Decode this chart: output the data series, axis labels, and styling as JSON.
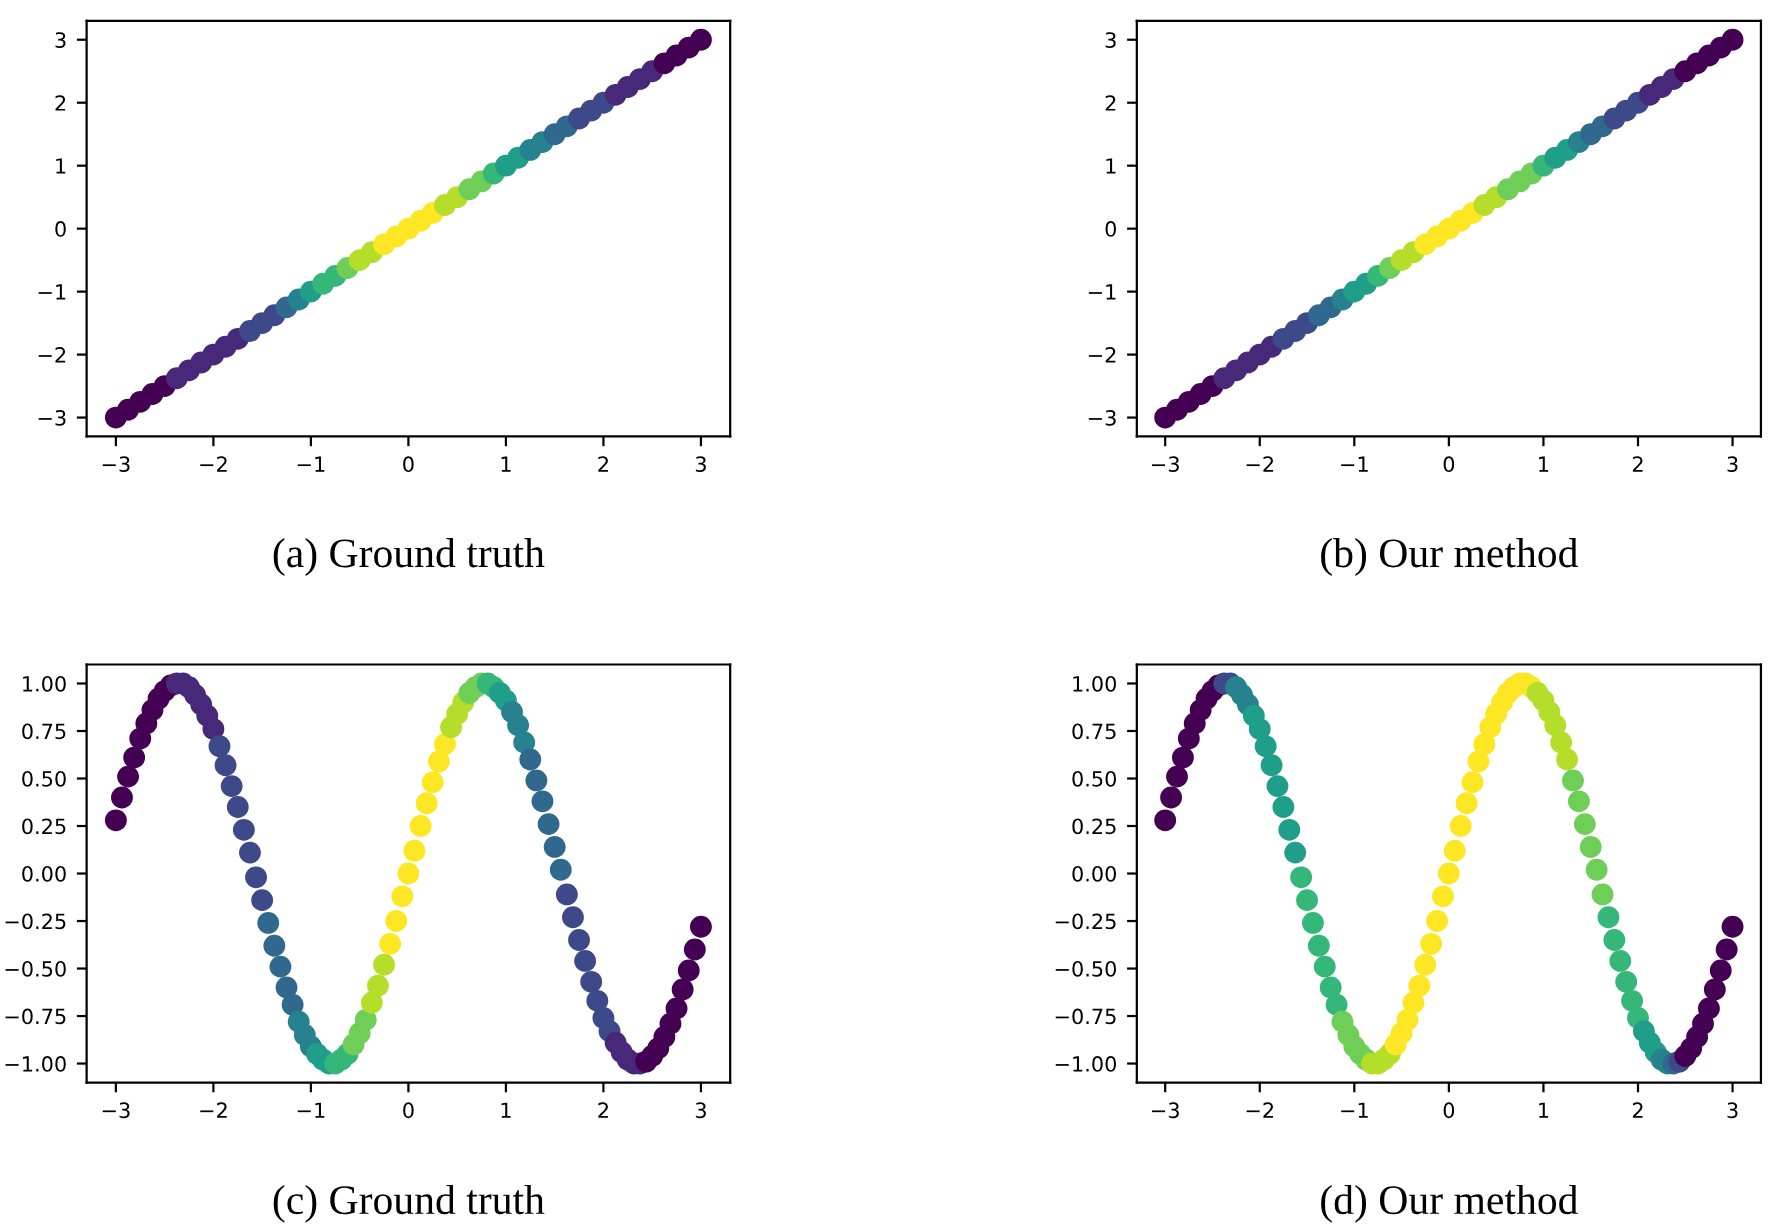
{
  "chart_data": [
    {
      "type": "scatter",
      "title": "(a) Ground truth",
      "grid": false,
      "marker": "circle",
      "xlim": [
        -3.3,
        3.3
      ],
      "ylim": [
        -3.3,
        3.3
      ],
      "xticks": [
        -3,
        -2,
        -1,
        0,
        1,
        2,
        3
      ],
      "yticks": [
        -3,
        -2,
        -1,
        0,
        1,
        2,
        3
      ],
      "x": [
        -3,
        -2.875,
        -2.75,
        -2.625,
        -2.5,
        -2.375,
        -2.25,
        -2.125,
        -2,
        -1.875,
        -1.75,
        -1.625,
        -1.5,
        -1.375,
        -1.25,
        -1.125,
        -1,
        -0.875,
        -0.75,
        -0.625,
        -0.5,
        -0.375,
        -0.25,
        -0.125,
        0,
        0.125,
        0.25,
        0.375,
        0.5,
        0.625,
        0.75,
        0.875,
        1,
        1.125,
        1.25,
        1.375,
        1.5,
        1.625,
        1.75,
        1.875,
        2,
        2.125,
        2.25,
        2.375,
        2.5,
        2.625,
        2.75,
        2.875,
        3
      ],
      "values": [
        -3,
        -2.875,
        -2.75,
        -2.625,
        -2.5,
        -2.375,
        -2.25,
        -2.125,
        -2,
        -1.875,
        -1.75,
        -1.625,
        -1.5,
        -1.375,
        -1.25,
        -1.125,
        -1,
        -0.875,
        -0.75,
        -0.625,
        -0.5,
        -0.375,
        -0.25,
        -0.125,
        0,
        0.125,
        0.25,
        0.375,
        0.5,
        0.625,
        0.75,
        0.875,
        1,
        1.125,
        1.25,
        1.375,
        1.5,
        1.625,
        1.75,
        1.875,
        2,
        2.125,
        2.25,
        2.375,
        2.5,
        2.625,
        2.75,
        2.875,
        3
      ],
      "colors": [
        "#440154",
        "#440154",
        "#440154",
        "#440154",
        "#440154",
        "#482878",
        "#482878",
        "#482878",
        "#482878",
        "#482878",
        "#482878",
        "#3e4989",
        "#3e4989",
        "#3e4989",
        "#31688e",
        "#26828e",
        "#1f9e89",
        "#35b779",
        "#35b779",
        "#6ece58",
        "#b5de2b",
        "#b5de2b",
        "#fde725",
        "#fde725",
        "#fde725",
        "#fde725",
        "#fde725",
        "#b5de2b",
        "#b5de2b",
        "#6ece58",
        "#6ece58",
        "#35b779",
        "#1f9e89",
        "#1f9e89",
        "#26828e",
        "#26828e",
        "#31688e",
        "#31688e",
        "#3e4989",
        "#3e4989",
        "#3e4989",
        "#482878",
        "#482878",
        "#482878",
        "#482878",
        "#440154",
        "#440154",
        "#440154",
        "#440154"
      ]
    },
    {
      "type": "scatter",
      "title": "(b) Our method",
      "grid": false,
      "marker": "circle",
      "xlim": [
        -3.3,
        3.3
      ],
      "ylim": [
        -3.3,
        3.3
      ],
      "xticks": [
        -3,
        -2,
        -1,
        0,
        1,
        2,
        3
      ],
      "yticks": [
        -3,
        -2,
        -1,
        0,
        1,
        2,
        3
      ],
      "x": [
        -3,
        -2.875,
        -2.75,
        -2.625,
        -2.5,
        -2.375,
        -2.25,
        -2.125,
        -2,
        -1.875,
        -1.75,
        -1.625,
        -1.5,
        -1.375,
        -1.25,
        -1.125,
        -1,
        -0.875,
        -0.75,
        -0.625,
        -0.5,
        -0.375,
        -0.25,
        -0.125,
        0,
        0.125,
        0.25,
        0.375,
        0.5,
        0.625,
        0.75,
        0.875,
        1,
        1.125,
        1.25,
        1.375,
        1.5,
        1.625,
        1.75,
        1.875,
        2,
        2.125,
        2.25,
        2.375,
        2.5,
        2.625,
        2.75,
        2.875,
        3
      ],
      "values": [
        -3,
        -2.875,
        -2.75,
        -2.625,
        -2.5,
        -2.375,
        -2.25,
        -2.125,
        -2,
        -1.875,
        -1.75,
        -1.625,
        -1.5,
        -1.375,
        -1.25,
        -1.125,
        -1,
        -0.875,
        -0.75,
        -0.625,
        -0.5,
        -0.375,
        -0.25,
        -0.125,
        0,
        0.125,
        0.25,
        0.375,
        0.5,
        0.625,
        0.75,
        0.875,
        1,
        1.125,
        1.25,
        1.375,
        1.5,
        1.625,
        1.75,
        1.875,
        2,
        2.125,
        2.25,
        2.375,
        2.5,
        2.625,
        2.75,
        2.875,
        3
      ],
      "colors": [
        "#440154",
        "#440154",
        "#440154",
        "#440154",
        "#440154",
        "#482878",
        "#482878",
        "#482878",
        "#482878",
        "#482878",
        "#3e4989",
        "#3e4989",
        "#3e4989",
        "#31688e",
        "#31688e",
        "#26828e",
        "#1f9e89",
        "#1f9e89",
        "#35b779",
        "#6ece58",
        "#b5de2b",
        "#b5de2b",
        "#fde725",
        "#fde725",
        "#fde725",
        "#fde725",
        "#fde725",
        "#b5de2b",
        "#b5de2b",
        "#6ece58",
        "#6ece58",
        "#6ece58",
        "#35b779",
        "#1f9e89",
        "#1f9e89",
        "#26828e",
        "#31688e",
        "#31688e",
        "#3e4989",
        "#3e4989",
        "#3e4989",
        "#482878",
        "#482878",
        "#482878",
        "#440154",
        "#440154",
        "#440154",
        "#440154",
        "#440154"
      ]
    },
    {
      "type": "scatter",
      "title": "(c) Ground truth",
      "grid": false,
      "marker": "circle",
      "xlim": [
        -3.3,
        3.3
      ],
      "ylim": [
        -1.1,
        1.1
      ],
      "xticks": [
        -3,
        -2,
        -1,
        0,
        1,
        2,
        3
      ],
      "yticks": [
        {
          "value": -1,
          "label": "−1.00"
        },
        {
          "value": -0.75,
          "label": "−0.75"
        },
        {
          "value": -0.5,
          "label": "−0.50"
        },
        {
          "value": -0.25,
          "label": "−0.25"
        },
        {
          "value": 0,
          "label": "0.00"
        },
        {
          "value": 0.25,
          "label": "0.25"
        },
        {
          "value": 0.5,
          "label": "0.50"
        },
        {
          "value": 0.75,
          "label": "0.75"
        },
        {
          "value": 1,
          "label": "1.00"
        }
      ],
      "x": [
        -3,
        -2.9375,
        -2.875,
        -2.8125,
        -2.75,
        -2.6875,
        -2.625,
        -2.5625,
        -2.5,
        -2.4375,
        -2.375,
        -2.3125,
        -2.25,
        -2.1875,
        -2.125,
        -2.0625,
        -2,
        -1.9375,
        -1.875,
        -1.8125,
        -1.75,
        -1.6875,
        -1.625,
        -1.5625,
        -1.5,
        -1.4375,
        -1.375,
        -1.3125,
        -1.25,
        -1.1875,
        -1.125,
        -1.0625,
        -1,
        -0.9375,
        -0.875,
        -0.8125,
        -0.75,
        -0.6875,
        -0.625,
        -0.5625,
        -0.5,
        -0.4375,
        -0.375,
        -0.3125,
        -0.25,
        -0.1875,
        -0.125,
        -0.0625,
        0,
        0.0625,
        0.125,
        0.1875,
        0.25,
        0.3125,
        0.375,
        0.4375,
        0.5,
        0.5625,
        0.625,
        0.6875,
        0.75,
        0.8125,
        0.875,
        0.9375,
        1,
        1.0625,
        1.125,
        1.1875,
        1.25,
        1.3125,
        1.375,
        1.4375,
        1.5,
        1.5625,
        1.625,
        1.6875,
        1.75,
        1.8125,
        1.875,
        1.9375,
        2,
        2.0625,
        2.125,
        2.1875,
        2.25,
        2.3125,
        2.375,
        2.4375,
        2.5,
        2.5625,
        2.625,
        2.6875,
        2.75,
        2.8125,
        2.875,
        2.9375,
        3
      ],
      "values": [
        0.28,
        0.4,
        0.51,
        0.61,
        0.71,
        0.79,
        0.86,
        0.92,
        0.96,
        0.99,
        1.0,
        1.0,
        0.98,
        0.94,
        0.89,
        0.83,
        0.76,
        0.67,
        0.57,
        0.46,
        0.35,
        0.23,
        0.11,
        -0.02,
        -0.14,
        -0.26,
        -0.38,
        -0.49,
        -0.6,
        -0.69,
        -0.78,
        -0.85,
        -0.91,
        -0.95,
        -0.98,
        -1.0,
        -1.0,
        -0.98,
        -0.95,
        -0.9,
        -0.84,
        -0.77,
        -0.68,
        -0.59,
        -0.48,
        -0.37,
        -0.25,
        -0.12,
        0,
        0.12,
        0.25,
        0.37,
        0.48,
        0.59,
        0.68,
        0.77,
        0.84,
        0.9,
        0.95,
        0.98,
        1.0,
        1.0,
        0.98,
        0.95,
        0.91,
        0.85,
        0.78,
        0.69,
        0.6,
        0.49,
        0.38,
        0.26,
        0.14,
        0.02,
        -0.11,
        -0.23,
        -0.35,
        -0.46,
        -0.57,
        -0.67,
        -0.76,
        -0.83,
        -0.89,
        -0.94,
        -0.98,
        -1.0,
        -1.0,
        -0.99,
        -0.96,
        -0.92,
        -0.86,
        -0.79,
        -0.71,
        -0.61,
        -0.51,
        -0.4,
        -0.28
      ],
      "colors": [
        "#440154",
        "#440154",
        "#440154",
        "#440154",
        "#440154",
        "#440154",
        "#440154",
        "#440154",
        "#440154",
        "#440154",
        "#482878",
        "#482878",
        "#482878",
        "#482878",
        "#482878",
        "#482878",
        "#482878",
        "#3e4989",
        "#3e4989",
        "#3e4989",
        "#3e4989",
        "#3e4989",
        "#3e4989",
        "#3e4989",
        "#3e4989",
        "#31688e",
        "#31688e",
        "#31688e",
        "#31688e",
        "#31688e",
        "#26828e",
        "#26828e",
        "#26828e",
        "#1f9e89",
        "#1f9e89",
        "#1f9e89",
        "#35b779",
        "#35b779",
        "#35b779",
        "#6ece58",
        "#6ece58",
        "#6ece58",
        "#b5de2b",
        "#b5de2b",
        "#b5de2b",
        "#fde725",
        "#fde725",
        "#fde725",
        "#fde725",
        "#fde725",
        "#fde725",
        "#fde725",
        "#fde725",
        "#fde725",
        "#fde725",
        "#b5de2b",
        "#b5de2b",
        "#b5de2b",
        "#6ece58",
        "#6ece58",
        "#6ece58",
        "#35b779",
        "#35b779",
        "#1f9e89",
        "#1f9e89",
        "#26828e",
        "#26828e",
        "#26828e",
        "#31688e",
        "#31688e",
        "#31688e",
        "#31688e",
        "#31688e",
        "#31688e",
        "#3e4989",
        "#3e4989",
        "#3e4989",
        "#3e4989",
        "#3e4989",
        "#3e4989",
        "#3e4989",
        "#3e4989",
        "#482878",
        "#482878",
        "#482878",
        "#482878",
        "#482878",
        "#440154",
        "#440154",
        "#440154",
        "#440154",
        "#440154",
        "#440154",
        "#440154",
        "#440154",
        "#440154",
        "#440154"
      ]
    },
    {
      "type": "scatter",
      "title": "(d) Our method",
      "grid": false,
      "marker": "circle",
      "xlim": [
        -3.3,
        3.3
      ],
      "ylim": [
        -1.1,
        1.1
      ],
      "xticks": [
        -3,
        -2,
        -1,
        0,
        1,
        2,
        3
      ],
      "yticks": [
        {
          "value": -1,
          "label": "−1.00"
        },
        {
          "value": -0.75,
          "label": "−0.75"
        },
        {
          "value": -0.5,
          "label": "−0.50"
        },
        {
          "value": -0.25,
          "label": "−0.25"
        },
        {
          "value": 0,
          "label": "0.00"
        },
        {
          "value": 0.25,
          "label": "0.25"
        },
        {
          "value": 0.5,
          "label": "0.50"
        },
        {
          "value": 0.75,
          "label": "0.75"
        },
        {
          "value": 1,
          "label": "1.00"
        }
      ],
      "x": [
        -3,
        -2.9375,
        -2.875,
        -2.8125,
        -2.75,
        -2.6875,
        -2.625,
        -2.5625,
        -2.5,
        -2.4375,
        -2.375,
        -2.3125,
        -2.25,
        -2.1875,
        -2.125,
        -2.0625,
        -2,
        -1.9375,
        -1.875,
        -1.8125,
        -1.75,
        -1.6875,
        -1.625,
        -1.5625,
        -1.5,
        -1.4375,
        -1.375,
        -1.3125,
        -1.25,
        -1.1875,
        -1.125,
        -1.0625,
        -1,
        -0.9375,
        -0.875,
        -0.8125,
        -0.75,
        -0.6875,
        -0.625,
        -0.5625,
        -0.5,
        -0.4375,
        -0.375,
        -0.3125,
        -0.25,
        -0.1875,
        -0.125,
        -0.0625,
        0,
        0.0625,
        0.125,
        0.1875,
        0.25,
        0.3125,
        0.375,
        0.4375,
        0.5,
        0.5625,
        0.625,
        0.6875,
        0.75,
        0.8125,
        0.875,
        0.9375,
        1,
        1.0625,
        1.125,
        1.1875,
        1.25,
        1.3125,
        1.375,
        1.4375,
        1.5,
        1.5625,
        1.625,
        1.6875,
        1.75,
        1.8125,
        1.875,
        1.9375,
        2,
        2.0625,
        2.125,
        2.1875,
        2.25,
        2.3125,
        2.375,
        2.4375,
        2.5,
        2.5625,
        2.625,
        2.6875,
        2.75,
        2.8125,
        2.875,
        2.9375,
        3
      ],
      "values": [
        0.28,
        0.4,
        0.51,
        0.61,
        0.71,
        0.79,
        0.86,
        0.92,
        0.96,
        0.99,
        1.0,
        1.0,
        0.98,
        0.94,
        0.89,
        0.83,
        0.76,
        0.67,
        0.57,
        0.46,
        0.35,
        0.23,
        0.11,
        -0.02,
        -0.14,
        -0.26,
        -0.38,
        -0.49,
        -0.6,
        -0.69,
        -0.78,
        -0.85,
        -0.91,
        -0.95,
        -0.98,
        -1.0,
        -1.0,
        -0.98,
        -0.95,
        -0.9,
        -0.84,
        -0.77,
        -0.68,
        -0.59,
        -0.48,
        -0.37,
        -0.25,
        -0.12,
        0,
        0.12,
        0.25,
        0.37,
        0.48,
        0.59,
        0.68,
        0.77,
        0.84,
        0.9,
        0.95,
        0.98,
        1.0,
        1.0,
        0.98,
        0.95,
        0.91,
        0.85,
        0.78,
        0.69,
        0.6,
        0.49,
        0.38,
        0.26,
        0.14,
        0.02,
        -0.11,
        -0.23,
        -0.35,
        -0.46,
        -0.57,
        -0.67,
        -0.76,
        -0.83,
        -0.89,
        -0.94,
        -0.98,
        -1.0,
        -1.0,
        -0.99,
        -0.96,
        -0.92,
        -0.86,
        -0.79,
        -0.71,
        -0.61,
        -0.51,
        -0.4,
        -0.28
      ],
      "colors": [
        "#440154",
        "#440154",
        "#440154",
        "#440154",
        "#440154",
        "#440154",
        "#440154",
        "#440154",
        "#440154",
        "#440154",
        "#3e4989",
        "#3e4989",
        "#26828e",
        "#26828e",
        "#26828e",
        "#1f9e89",
        "#1f9e89",
        "#1f9e89",
        "#1f9e89",
        "#1f9e89",
        "#1f9e89",
        "#1f9e89",
        "#1f9e89",
        "#35b779",
        "#35b779",
        "#35b779",
        "#35b779",
        "#35b779",
        "#35b779",
        "#35b779",
        "#6ece58",
        "#6ece58",
        "#6ece58",
        "#6ece58",
        "#6ece58",
        "#b5de2b",
        "#b5de2b",
        "#b5de2b",
        "#b5de2b",
        "#fde725",
        "#fde725",
        "#fde725",
        "#fde725",
        "#fde725",
        "#fde725",
        "#fde725",
        "#fde725",
        "#fde725",
        "#fde725",
        "#fde725",
        "#fde725",
        "#fde725",
        "#fde725",
        "#fde725",
        "#fde725",
        "#fde725",
        "#fde725",
        "#fde725",
        "#fde725",
        "#fde725",
        "#fde725",
        "#fde725",
        "#fde725",
        "#b5de2b",
        "#b5de2b",
        "#b5de2b",
        "#b5de2b",
        "#b5de2b",
        "#b5de2b",
        "#6ece58",
        "#6ece58",
        "#6ece58",
        "#6ece58",
        "#6ece58",
        "#6ece58",
        "#35b779",
        "#35b779",
        "#35b779",
        "#35b779",
        "#35b779",
        "#35b779",
        "#1f9e89",
        "#1f9e89",
        "#1f9e89",
        "#26828e",
        "#26828e",
        "#31688e",
        "#3e4989",
        "#440154",
        "#440154",
        "#440154",
        "#440154",
        "#440154",
        "#440154",
        "#440154",
        "#440154",
        "#440154"
      ]
    }
  ]
}
